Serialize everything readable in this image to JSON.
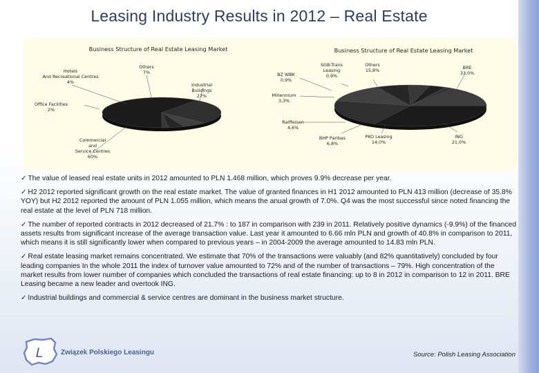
{
  "page": {
    "title": "Leasing Industry Results in 2012 – Real Estate",
    "source": "Source: Polish Leasing Association",
    "logo_text": "Związek Polskiego Leasingu",
    "logo_letter": "L"
  },
  "bullets": [
    "The value of leased real estate units in 2012 amounted to PLN 1.468 million, which proves 9.9% decrease per year.",
    "H2 2012 reported significant growth on the real estate market. The value of granted finances in H1 2012 amounted to PLN 413 million (decrease of 35.8% YOY) but H2 2012 reported the amount of PLN 1.055 million, which means the anual growth of 7.0%. Q4 was the most successful since noted financing the real estate at the level of PLN 718 million.",
    "The number of reported contracts in 2012 decreased of 21.7% : to 187 in comparison with 239 in 2011. Relatively positive dynamics (-9.9%) of the financed assets results from significant increase of the average transaction value. Last year it amounted to 6.66 mln PLN and growth of 40.8% in comparison to 2011, which means it is still significantly lower when compared to previous years – in 2004-2009 the average amounted to 14.83 mln PLN.",
    "Real estate leasing market remains concentrated. We estimate that 70% of the transactions were valuably (and 82% quantitatively) concluded by four leading companies In the whole 2011 the index of turnover value amounted to 72% and of the number of transactions – 79%. High concentration of the market results from lower number of companies which concluded the transactions of real estate financing: up to 8 in 2012 in comparison to 12 in 2011. BRE Leasing became a new leader and overtook ING.",
    "Industrial buildings and commercial & service centres are dominant in the business market structure."
  ],
  "colors": {
    "title": "#2e3b66",
    "panel": "#fffce7",
    "pie_dark": "#1d1d1d",
    "pie_mid": "#3a3a3a"
  },
  "chart_data": [
    {
      "type": "pie",
      "title": "Business Structure of Real Estate Leasing Market",
      "slices": [
        {
          "label": "Commercial and Service Centres",
          "display": "60%",
          "value": 60
        },
        {
          "label": "Industrial Buildings",
          "display": "27%",
          "value": 27
        },
        {
          "label": "Others",
          "display": "7%",
          "value": 7
        },
        {
          "label": "Hotels And Recreational Centres",
          "display": "4%",
          "value": 4
        },
        {
          "label": "Office Facilities",
          "display": "2%",
          "value": 2
        }
      ]
    },
    {
      "type": "pie",
      "title": "Business Structure of Real Estate Leasing Market",
      "slices": [
        {
          "label": "BRE",
          "display": "33,0%",
          "value": 33.0
        },
        {
          "label": "ING",
          "display": "21,0%",
          "value": 21.0
        },
        {
          "label": "PKO Leasing",
          "display": "14,0%",
          "value": 14.0
        },
        {
          "label": "BHP Paribas",
          "display": "6,8%",
          "value": 6.8
        },
        {
          "label": "Raiffeisen",
          "display": "4,6%",
          "value": 4.6
        },
        {
          "label": "Millennium",
          "display": "3,3%",
          "value": 3.3
        },
        {
          "label": "BZ WBK",
          "display": "0,9%",
          "value": 0.9
        },
        {
          "label": "SGB-Trans Leasing",
          "display": "0,9%",
          "value": 0.9
        },
        {
          "label": "Others",
          "display": "15,8%",
          "value": 15.8
        }
      ]
    }
  ]
}
